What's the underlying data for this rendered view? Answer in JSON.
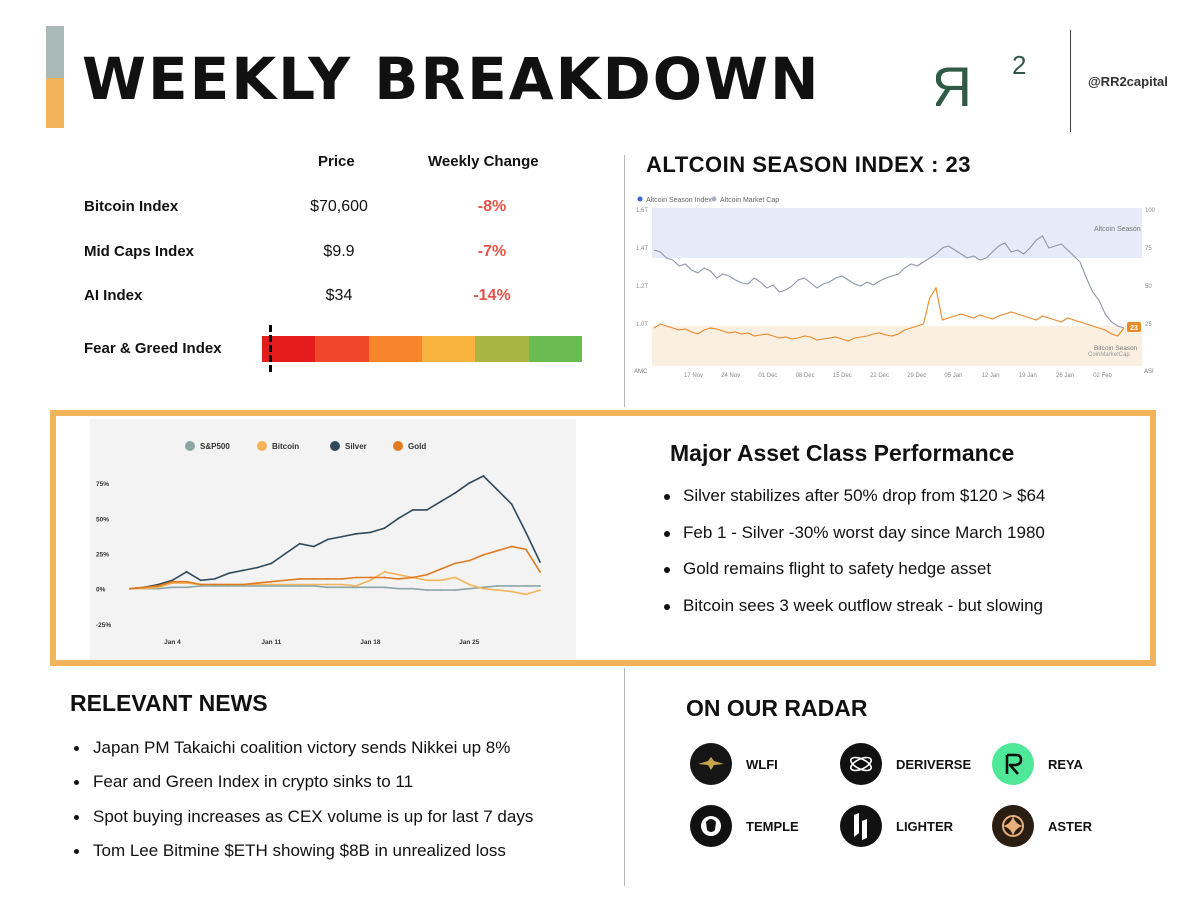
{
  "header": {
    "title": "WEEKLY BREAKDOWN",
    "logo_text": "RR",
    "logo_superscript": "2",
    "handle": "@RR2capital"
  },
  "index_table": {
    "col_price": "Price",
    "col_change": "Weekly Change",
    "rows": [
      {
        "label": "Bitcoin Index",
        "price": "$70,600",
        "change": "-8%"
      },
      {
        "label": "Mid Caps Index",
        "price": "$9.9",
        "change": "-7%"
      },
      {
        "label": "AI Index",
        "price": "$34",
        "change": "-14%"
      }
    ],
    "fear_greed_label": "Fear & Greed Index",
    "fear_greed_value": 11,
    "fear_greed_colors": [
      "#e51c1c",
      "#f0462a",
      "#f7842a",
      "#f7b33e",
      "#a9b541",
      "#6bbb53"
    ]
  },
  "altcoin": {
    "title": "ALTCOIN SEASON INDEX :  23",
    "legend_1": "Altcoin Season Index",
    "legend_2": "Altcoin Market Cap",
    "zone_top": "Altcoin Season",
    "zone_bottom": "Bitcoin Season",
    "watermark": "CoinMarketCap",
    "current_value": "23",
    "left_axis": [
      "1.6T",
      "1.4T",
      "1.2T",
      "1.0T"
    ],
    "right_axis": [
      "100",
      "75",
      "50",
      "25"
    ],
    "axis_left_corner": "AMC",
    "axis_right_corner": "ASI",
    "x_labels": [
      "17 Nov",
      "24 Nov",
      "01 Dec",
      "08 Dec",
      "15 Dec",
      "22 Dec",
      "29 Dec",
      "05 Jan",
      "12 Jan",
      "19 Jan",
      "26 Jan",
      "02 Feb"
    ]
  },
  "performance": {
    "title": "Major Asset Class Performance",
    "bullets": [
      "Silver stabilizes after 50% drop from $120 > $64",
      "Feb 1 - Silver -30% worst day since March 1980",
      "Gold remains flight to safety hedge asset",
      "Bitcoin sees 3 week outflow streak - but slowing"
    ]
  },
  "chart_data": {
    "type": "line",
    "x": [
      "Jan 1",
      "Jan 2",
      "Jan 3",
      "Jan 4",
      "Jan 5",
      "Jan 6",
      "Jan 7",
      "Jan 8",
      "Jan 9",
      "Jan 10",
      "Jan 11",
      "Jan 12",
      "Jan 13",
      "Jan 14",
      "Jan 15",
      "Jan 16",
      "Jan 17",
      "Jan 18",
      "Jan 19",
      "Jan 20",
      "Jan 21",
      "Jan 22",
      "Jan 23",
      "Jan 24",
      "Jan 25",
      "Jan 26",
      "Jan 27",
      "Jan 28",
      "Jan 29",
      "Jan 30"
    ],
    "x_tick_labels": [
      "Jan 4",
      "Jan 11",
      "Jan 18",
      "Jan 25"
    ],
    "y_tick_labels": [
      "75%",
      "50%",
      "25%",
      "0%",
      "-25%"
    ],
    "ylim": [
      -30,
      85
    ],
    "series": [
      {
        "name": "S&P500",
        "color": "#8aa6a6",
        "values": [
          0,
          0,
          0,
          1,
          1,
          2,
          2,
          2,
          2,
          2,
          2,
          2,
          2,
          2,
          1,
          1,
          1,
          1,
          1,
          0,
          0,
          -1,
          -1,
          -1,
          0,
          1,
          2,
          2,
          2,
          2
        ]
      },
      {
        "name": "Bitcoin",
        "color": "#f5b35a",
        "values": [
          0,
          0,
          1,
          4,
          4,
          3,
          3,
          3,
          3,
          3,
          3,
          3,
          3,
          3,
          3,
          3,
          2,
          6,
          12,
          10,
          8,
          6,
          6,
          8,
          3,
          0,
          -1,
          -2,
          -4,
          -1
        ]
      },
      {
        "name": "Silver",
        "color": "#2e4a5c",
        "values": [
          0,
          1,
          3,
          6,
          12,
          6,
          7,
          11,
          13,
          15,
          18,
          25,
          32,
          30,
          35,
          37,
          39,
          40,
          43,
          50,
          56,
          56,
          62,
          68,
          75,
          80,
          70,
          60,
          40,
          19
        ]
      },
      {
        "name": "Gold",
        "color": "#e07b22",
        "values": [
          0,
          1,
          2,
          5,
          5,
          3,
          3,
          3,
          3,
          4,
          5,
          6,
          7,
          7,
          7,
          7,
          8,
          8,
          8,
          7,
          8,
          10,
          14,
          18,
          20,
          24,
          27,
          30,
          28,
          12
        ]
      }
    ]
  },
  "news": {
    "title": "RELEVANT NEWS",
    "items": [
      "Japan PM Takaichi coalition victory sends Nikkei up 8%",
      "Fear and Green Index in crypto sinks to 11",
      "Spot buying increases as CEX volume is up for last 7 days",
      "Tom Lee Bitmine $ETH showing  $8B in unrealized loss"
    ]
  },
  "radar": {
    "title": "ON OUR RADAR",
    "items": [
      {
        "label": "WLFI",
        "icon": "wlfi-eagle-icon"
      },
      {
        "label": "DERIVERSE",
        "icon": "deriverse-orbit-icon"
      },
      {
        "label": "REYA",
        "icon": "reya-r-icon"
      },
      {
        "label": "TEMPLE",
        "icon": "temple-lion-icon"
      },
      {
        "label": "LIGHTER",
        "icon": "lighter-bolt-icon"
      },
      {
        "label": "ASTER",
        "icon": "aster-star-icon"
      }
    ]
  },
  "colors": {
    "accent": "#f2b35a",
    "brand_green": "#2f5a45",
    "negative": "#e4534a"
  }
}
